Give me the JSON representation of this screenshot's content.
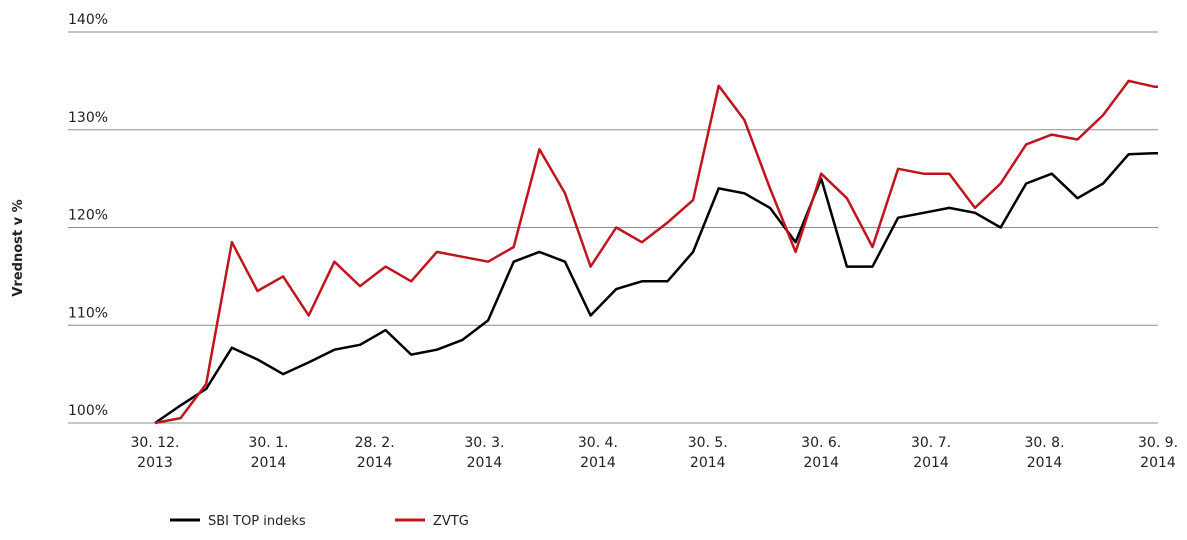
{
  "chart_data": {
    "type": "line",
    "y_axis_label": "Vrednost v %",
    "x": [
      "2013-12-30",
      "2014-01-06",
      "2014-01-13",
      "2014-01-20",
      "2014-01-27",
      "2014-02-03",
      "2014-02-10",
      "2014-02-17",
      "2014-02-24",
      "2014-03-03",
      "2014-03-10",
      "2014-03-17",
      "2014-03-24",
      "2014-03-31",
      "2014-04-07",
      "2014-04-14",
      "2014-04-21",
      "2014-04-28",
      "2014-05-05",
      "2014-05-12",
      "2014-05-19",
      "2014-05-26",
      "2014-06-02",
      "2014-06-09",
      "2014-06-16",
      "2014-06-23",
      "2014-06-30",
      "2014-07-07",
      "2014-07-14",
      "2014-07-21",
      "2014-07-28",
      "2014-08-04",
      "2014-08-11",
      "2014-08-18",
      "2014-08-25",
      "2014-09-01",
      "2014-09-08",
      "2014-09-15",
      "2014-09-22",
      "2014-09-29",
      "2014-09-30"
    ],
    "series": [
      {
        "name": "SBI TOP indeks",
        "color": "#000000",
        "values": [
          100,
          101.8,
          103.5,
          107.7,
          106.5,
          105,
          106.2,
          107.5,
          108,
          109.5,
          107,
          107.5,
          108.5,
          110.5,
          116.5,
          117.5,
          116.5,
          111,
          113.7,
          114.5,
          114.5,
          117.5,
          124,
          123.5,
          122,
          118.5,
          125,
          116,
          116,
          121,
          121.5,
          122,
          121.5,
          120,
          124.5,
          125.5,
          123,
          124.5,
          127.5,
          127.6,
          127.6
        ]
      },
      {
        "name": "ZVTG",
        "color": "#c0141e",
        "values": [
          100,
          100.5,
          104,
          118.5,
          113.5,
          115,
          111,
          116.5,
          114,
          116,
          114.5,
          117.5,
          117,
          116.5,
          118,
          128,
          123.5,
          116,
          120,
          118.5,
          120.5,
          122.8,
          134.5,
          131,
          124,
          117.5,
          125.5,
          123,
          118,
          126,
          125.5,
          125.5,
          122,
          124.5,
          128.5,
          129.5,
          129,
          131.5,
          135,
          134.4,
          134.4
        ]
      }
    ],
    "xlim": [
      "2013-12-30",
      "2014-09-30"
    ],
    "xticks": [
      {
        "value": "2013-12-30",
        "label": "30. 12.\n2013"
      },
      {
        "value": "2014-01-30",
        "label": "30. 1.\n2014"
      },
      {
        "value": "2014-02-28",
        "label": "28. 2.\n2014"
      },
      {
        "value": "2014-03-30",
        "label": "30. 3.\n2014"
      },
      {
        "value": "2014-04-30",
        "label": "30. 4.\n2014"
      },
      {
        "value": "2014-05-30",
        "label": "30. 5.\n2014"
      },
      {
        "value": "2014-06-30",
        "label": "30. 6.\n2014"
      },
      {
        "value": "2014-07-30",
        "label": "30. 7.\n2014"
      },
      {
        "value": "2014-08-30",
        "label": "30. 8.\n2014"
      },
      {
        "value": "2014-09-30",
        "label": "30. 9.\n2014"
      }
    ],
    "ylim": [
      100,
      140
    ],
    "yticks": [
      {
        "value": 100,
        "label": "100%"
      },
      {
        "value": 110,
        "label": "110%"
      },
      {
        "value": 120,
        "label": "120%"
      },
      {
        "value": 130,
        "label": "130%"
      },
      {
        "value": 140,
        "label": "140%"
      }
    ],
    "grid": true,
    "legend": "bottom"
  }
}
